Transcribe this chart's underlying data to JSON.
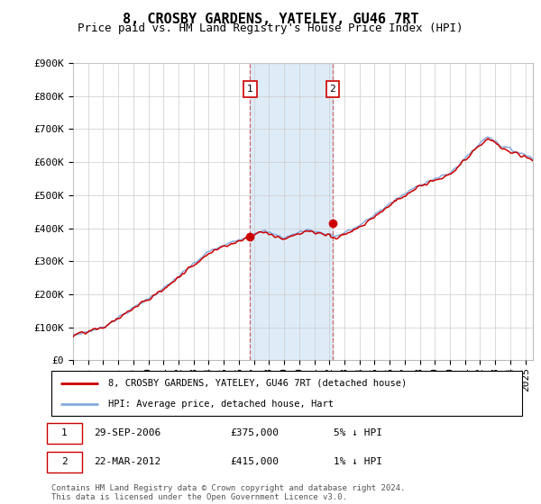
{
  "title": "8, CROSBY GARDENS, YATELEY, GU46 7RT",
  "subtitle": "Price paid vs. HM Land Registry's House Price Index (HPI)",
  "ylabel_ticks": [
    "£0",
    "£100K",
    "£200K",
    "£300K",
    "£400K",
    "£500K",
    "£600K",
    "£700K",
    "£800K",
    "£900K"
  ],
  "ylim": [
    0,
    900000
  ],
  "xlim_start": 1995.0,
  "xlim_end": 2025.5,
  "purchase1_x": 2006.75,
  "purchase1_y": 375000,
  "purchase2_x": 2012.22,
  "purchase2_y": 415000,
  "sale_color": "#cc0000",
  "hpi_color": "#88aadd",
  "shaded_color": "#d0e4f5",
  "legend_sale_label": "8, CROSBY GARDENS, YATELEY, GU46 7RT (detached house)",
  "legend_hpi_label": "HPI: Average price, detached house, Hart",
  "annotation1_date": "29-SEP-2006",
  "annotation1_price": "£375,000",
  "annotation1_hpi": "5% ↓ HPI",
  "annotation2_date": "22-MAR-2012",
  "annotation2_price": "£415,000",
  "annotation2_hpi": "1% ↓ HPI",
  "footnote": "Contains HM Land Registry data © Crown copyright and database right 2024.\nThis data is licensed under the Open Government Licence v3.0.",
  "background_color": "#ffffff",
  "grid_color": "#cccccc",
  "title_fontsize": 11,
  "subtitle_fontsize": 9,
  "tick_fontsize": 8
}
